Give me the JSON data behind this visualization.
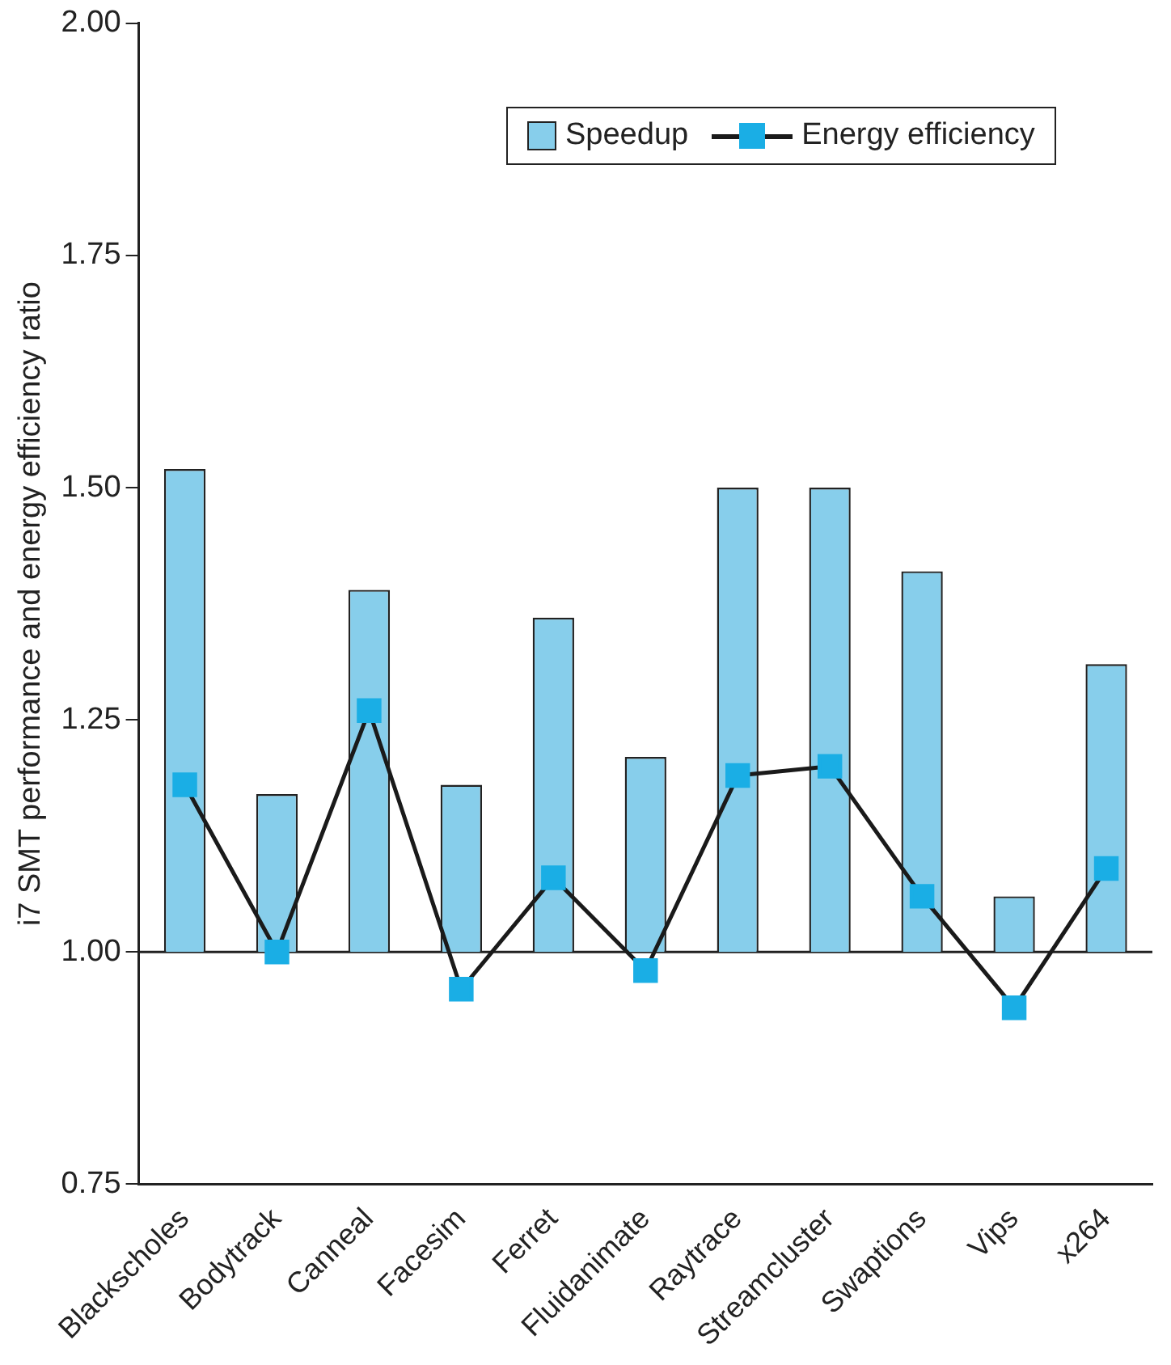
{
  "chart_data": {
    "type": "bar",
    "ylabel": "i7 SMT performance and energy efficiency ratio",
    "categories": [
      "Blackscholes",
      "Bodytrack",
      "Canneal",
      "Facesim",
      "Ferret",
      "Fluidanimate",
      "Raytrace",
      "Streamcluster",
      "Swaptions",
      "Vips",
      "x264"
    ],
    "series": [
      {
        "name": "Speedup",
        "color": "#87ceeb",
        "base": [
          1,
          1,
          1,
          1,
          1,
          1,
          1,
          1,
          1,
          1,
          1
        ],
        "values": [
          0.52,
          0.17,
          0.39,
          0.18,
          0.36,
          0.21,
          0.5,
          0.5,
          0.41,
          0.06,
          0.31
        ]
      },
      {
        "name": "Energy efficiency",
        "type": "line",
        "color": "#1aaee5",
        "marker": "square",
        "values": [
          1.18,
          1.0,
          1.26,
          0.96,
          1.08,
          0.98,
          1.19,
          1.2,
          1.06,
          0.94,
          1.09
        ]
      }
    ],
    "ylim": [
      0.75,
      2.0
    ],
    "yticks": [
      {
        "value": 0.75,
        "label": "0.75"
      },
      {
        "value": 1,
        "label": "1.00"
      },
      {
        "value": 1.25,
        "label": "1.25"
      },
      {
        "value": 1.5,
        "label": "1.50"
      },
      {
        "value": 1.75,
        "label": "1.75"
      },
      {
        "value": 2,
        "label": "2.00"
      }
    ],
    "ref_lines": [
      {
        "axis": "y",
        "value": 1,
        "color": "#222222"
      }
    ],
    "grid": false,
    "legend": "top right"
  }
}
